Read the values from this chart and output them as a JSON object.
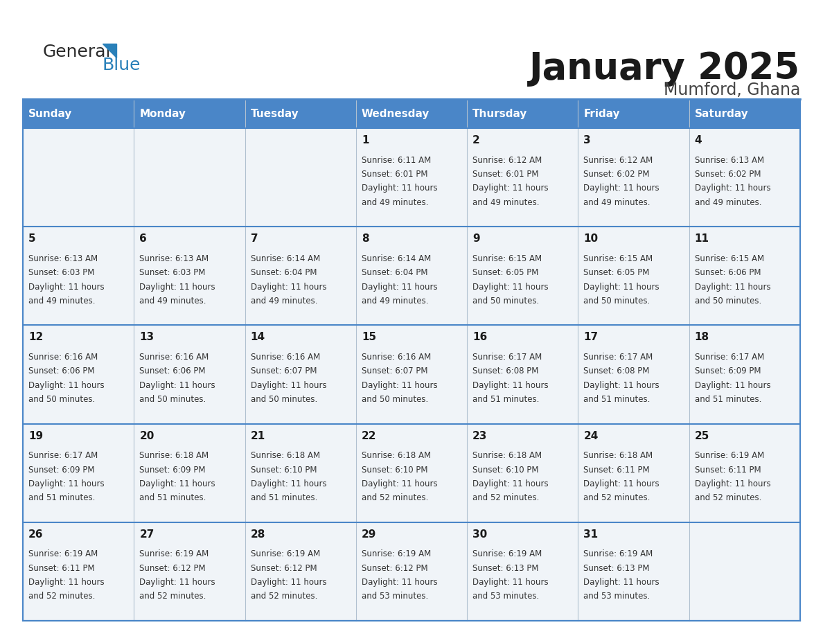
{
  "title": "January 2025",
  "subtitle": "Mumford, Ghana",
  "header_bg": "#4a86c8",
  "header_text_color": "#ffffff",
  "cell_bg": "#f0f4f8",
  "border_color": "#4a86c8",
  "border_color_light": "#a0b8d8",
  "text_color": "#333333",
  "day_names": [
    "Sunday",
    "Monday",
    "Tuesday",
    "Wednesday",
    "Thursday",
    "Friday",
    "Saturday"
  ],
  "days": [
    {
      "day": 1,
      "col": 3,
      "row": 0,
      "sunrise": "6:11 AM",
      "sunset": "6:01 PM",
      "daylight_hours": 11,
      "daylight_mins": 49
    },
    {
      "day": 2,
      "col": 4,
      "row": 0,
      "sunrise": "6:12 AM",
      "sunset": "6:01 PM",
      "daylight_hours": 11,
      "daylight_mins": 49
    },
    {
      "day": 3,
      "col": 5,
      "row": 0,
      "sunrise": "6:12 AM",
      "sunset": "6:02 PM",
      "daylight_hours": 11,
      "daylight_mins": 49
    },
    {
      "day": 4,
      "col": 6,
      "row": 0,
      "sunrise": "6:13 AM",
      "sunset": "6:02 PM",
      "daylight_hours": 11,
      "daylight_mins": 49
    },
    {
      "day": 5,
      "col": 0,
      "row": 1,
      "sunrise": "6:13 AM",
      "sunset": "6:03 PM",
      "daylight_hours": 11,
      "daylight_mins": 49
    },
    {
      "day": 6,
      "col": 1,
      "row": 1,
      "sunrise": "6:13 AM",
      "sunset": "6:03 PM",
      "daylight_hours": 11,
      "daylight_mins": 49
    },
    {
      "day": 7,
      "col": 2,
      "row": 1,
      "sunrise": "6:14 AM",
      "sunset": "6:04 PM",
      "daylight_hours": 11,
      "daylight_mins": 49
    },
    {
      "day": 8,
      "col": 3,
      "row": 1,
      "sunrise": "6:14 AM",
      "sunset": "6:04 PM",
      "daylight_hours": 11,
      "daylight_mins": 49
    },
    {
      "day": 9,
      "col": 4,
      "row": 1,
      "sunrise": "6:15 AM",
      "sunset": "6:05 PM",
      "daylight_hours": 11,
      "daylight_mins": 50
    },
    {
      "day": 10,
      "col": 5,
      "row": 1,
      "sunrise": "6:15 AM",
      "sunset": "6:05 PM",
      "daylight_hours": 11,
      "daylight_mins": 50
    },
    {
      "day": 11,
      "col": 6,
      "row": 1,
      "sunrise": "6:15 AM",
      "sunset": "6:06 PM",
      "daylight_hours": 11,
      "daylight_mins": 50
    },
    {
      "day": 12,
      "col": 0,
      "row": 2,
      "sunrise": "6:16 AM",
      "sunset": "6:06 PM",
      "daylight_hours": 11,
      "daylight_mins": 50
    },
    {
      "day": 13,
      "col": 1,
      "row": 2,
      "sunrise": "6:16 AM",
      "sunset": "6:06 PM",
      "daylight_hours": 11,
      "daylight_mins": 50
    },
    {
      "day": 14,
      "col": 2,
      "row": 2,
      "sunrise": "6:16 AM",
      "sunset": "6:07 PM",
      "daylight_hours": 11,
      "daylight_mins": 50
    },
    {
      "day": 15,
      "col": 3,
      "row": 2,
      "sunrise": "6:16 AM",
      "sunset": "6:07 PM",
      "daylight_hours": 11,
      "daylight_mins": 50
    },
    {
      "day": 16,
      "col": 4,
      "row": 2,
      "sunrise": "6:17 AM",
      "sunset": "6:08 PM",
      "daylight_hours": 11,
      "daylight_mins": 51
    },
    {
      "day": 17,
      "col": 5,
      "row": 2,
      "sunrise": "6:17 AM",
      "sunset": "6:08 PM",
      "daylight_hours": 11,
      "daylight_mins": 51
    },
    {
      "day": 18,
      "col": 6,
      "row": 2,
      "sunrise": "6:17 AM",
      "sunset": "6:09 PM",
      "daylight_hours": 11,
      "daylight_mins": 51
    },
    {
      "day": 19,
      "col": 0,
      "row": 3,
      "sunrise": "6:17 AM",
      "sunset": "6:09 PM",
      "daylight_hours": 11,
      "daylight_mins": 51
    },
    {
      "day": 20,
      "col": 1,
      "row": 3,
      "sunrise": "6:18 AM",
      "sunset": "6:09 PM",
      "daylight_hours": 11,
      "daylight_mins": 51
    },
    {
      "day": 21,
      "col": 2,
      "row": 3,
      "sunrise": "6:18 AM",
      "sunset": "6:10 PM",
      "daylight_hours": 11,
      "daylight_mins": 51
    },
    {
      "day": 22,
      "col": 3,
      "row": 3,
      "sunrise": "6:18 AM",
      "sunset": "6:10 PM",
      "daylight_hours": 11,
      "daylight_mins": 52
    },
    {
      "day": 23,
      "col": 4,
      "row": 3,
      "sunrise": "6:18 AM",
      "sunset": "6:10 PM",
      "daylight_hours": 11,
      "daylight_mins": 52
    },
    {
      "day": 24,
      "col": 5,
      "row": 3,
      "sunrise": "6:18 AM",
      "sunset": "6:11 PM",
      "daylight_hours": 11,
      "daylight_mins": 52
    },
    {
      "day": 25,
      "col": 6,
      "row": 3,
      "sunrise": "6:19 AM",
      "sunset": "6:11 PM",
      "daylight_hours": 11,
      "daylight_mins": 52
    },
    {
      "day": 26,
      "col": 0,
      "row": 4,
      "sunrise": "6:19 AM",
      "sunset": "6:11 PM",
      "daylight_hours": 11,
      "daylight_mins": 52
    },
    {
      "day": 27,
      "col": 1,
      "row": 4,
      "sunrise": "6:19 AM",
      "sunset": "6:12 PM",
      "daylight_hours": 11,
      "daylight_mins": 52
    },
    {
      "day": 28,
      "col": 2,
      "row": 4,
      "sunrise": "6:19 AM",
      "sunset": "6:12 PM",
      "daylight_hours": 11,
      "daylight_mins": 52
    },
    {
      "day": 29,
      "col": 3,
      "row": 4,
      "sunrise": "6:19 AM",
      "sunset": "6:12 PM",
      "daylight_hours": 11,
      "daylight_mins": 53
    },
    {
      "day": 30,
      "col": 4,
      "row": 4,
      "sunrise": "6:19 AM",
      "sunset": "6:13 PM",
      "daylight_hours": 11,
      "daylight_mins": 53
    },
    {
      "day": 31,
      "col": 5,
      "row": 4,
      "sunrise": "6:19 AM",
      "sunset": "6:13 PM",
      "daylight_hours": 11,
      "daylight_mins": 53
    }
  ]
}
